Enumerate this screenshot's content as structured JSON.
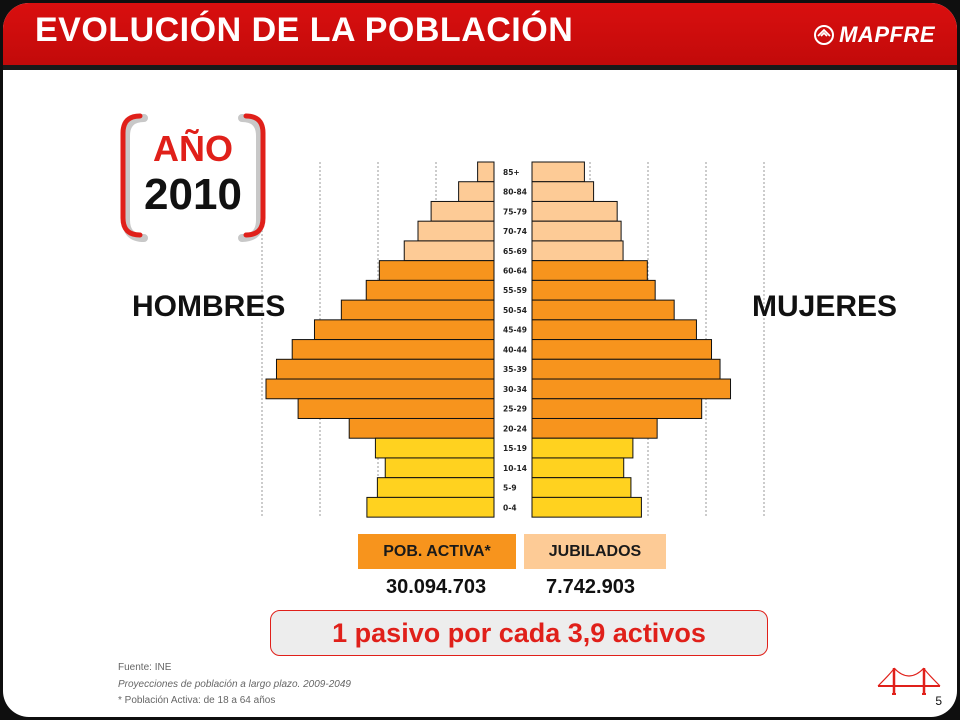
{
  "header": {
    "title": "EVOLUCIÓN DE LA POBLACIÓN",
    "logo_text": "MAPFRE",
    "accent_color": "#d90f0f"
  },
  "year_label": "AÑO",
  "year_value": "2010",
  "left_label": "HOMBRES",
  "right_label": "MUJERES",
  "legend": [
    {
      "label": "POB. ACTIVA*",
      "color": "#f7941d",
      "value": "30.094.703"
    },
    {
      "label": "JUBILADOS",
      "color": "#fdcb96",
      "value": "7.742.903"
    }
  ],
  "ratio_text": "1 pasivo por cada 3,9 activos",
  "footnotes": {
    "source": "Fuente: INE",
    "projection": "Proyecciones  de población a largo plazo. 2009-2049",
    "note": "* Población Activa: de 18 a 64 años"
  },
  "page_number": "5",
  "chart_data": {
    "type": "bar",
    "orientation": "horizontal",
    "categories": [
      "85+",
      "80-84",
      "75-79",
      "70-74",
      "65-69",
      "60-64",
      "55-59",
      "50-54",
      "45-49",
      "40-44",
      "35-39",
      "30-34",
      "25-29",
      "20-24",
      "15-19",
      "10-14",
      "5-9",
      "0-4"
    ],
    "series": [
      {
        "name": "HOMBRES",
        "values": [
          0.25,
          0.54,
          0.96,
          1.16,
          1.37,
          1.75,
          1.95,
          2.33,
          2.74,
          3.08,
          3.32,
          3.48,
          2.99,
          2.21,
          1.81,
          1.66,
          1.78,
          1.94
        ]
      },
      {
        "name": "MUJERES",
        "values": [
          0.8,
          0.94,
          1.3,
          1.36,
          1.39,
          1.76,
          1.88,
          2.17,
          2.51,
          2.74,
          2.87,
          3.03,
          2.59,
          1.91,
          1.54,
          1.4,
          1.51,
          1.67
        ]
      }
    ],
    "band_colors": {
      "85+": "#fdcb96",
      "80-84": "#fdcb96",
      "75-79": "#fdcb96",
      "70-74": "#fdcb96",
      "65-69": "#fdcb96",
      "60-64": "#f7941d",
      "55-59": "#f7941d",
      "50-54": "#f7941d",
      "45-49": "#f7941d",
      "40-44": "#f7941d",
      "35-39": "#f7941d",
      "30-34": "#f7941d",
      "25-29": "#f7941d",
      "20-24": "#f7941d",
      "15-19": "#ffd21f",
      "10-14": "#ffd21f",
      "5-9": "#ffd21f",
      "0-4": "#ffd21f"
    },
    "grid": true,
    "xlim": [
      0,
      3.6
    ]
  }
}
